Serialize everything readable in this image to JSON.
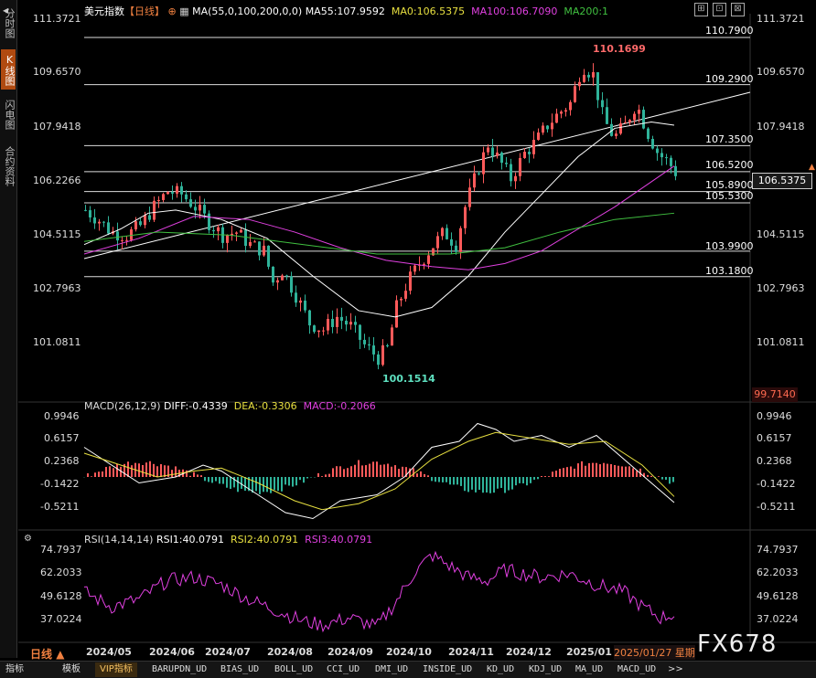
{
  "sidebar": {
    "tabs": [
      {
        "label": "分时图",
        "active": false
      },
      {
        "label": "K线图",
        "active": true
      },
      {
        "label": "闪电图",
        "active": false
      },
      {
        "label": "合约资料",
        "active": false
      }
    ]
  },
  "price_panel": {
    "instrument": "美元指数",
    "period": "【日线】",
    "ma_params": "MA(55,0,100,200,0,0)",
    "ma55": "MA55:107.9592",
    "ma0": "MA0:106.5375",
    "ma100": "MA100:106.7090",
    "ma200": "MA200:1",
    "y_ticks": [
      "111.3721",
      "109.6570",
      "107.9418",
      "106.2266",
      "104.5115",
      "102.7963",
      "101.0811"
    ],
    "levels": [
      "110.7900",
      "109.2900",
      "107.3500",
      "106.5200",
      "105.8900",
      "105.5300",
      "103.9900",
      "103.1800"
    ],
    "high_label": "110.1699",
    "low_label": "100.1514",
    "current_price": "106.5375",
    "low_tag": "99.7140"
  },
  "macd_panel": {
    "title": "MACD(26,12,9)",
    "diff": "DIFF:-0.4339",
    "dea": "DEA:-0.3306",
    "macd": "MACD:-0.2066",
    "y_ticks": [
      "0.9946",
      "0.6157",
      "0.2368",
      "-0.1422",
      "-0.5211"
    ]
  },
  "rsi_panel": {
    "title": "RSI(14,14,14)",
    "rsi1": "RSI1:40.0791",
    "rsi2": "RSI2:40.0791",
    "rsi3": "RSI3:40.0791",
    "y_ticks": [
      "74.7937",
      "62.2033",
      "49.6128",
      "37.0224"
    ]
  },
  "x_axis": {
    "period_label": "日线",
    "ticks": [
      "2024/05",
      "2024/06",
      "2024/07",
      "2024/08",
      "2024/09",
      "2024/10",
      "2024/11",
      "2024/12",
      "2025/01"
    ],
    "current_date": "2025/01/27 星期"
  },
  "watermark": "FX678",
  "bottom_tabs": [
    "指标",
    "模板",
    "VIP指标",
    "BARUPDN_UD",
    "BIAS_UD",
    "BOLL_UD",
    "CCI_UD",
    "DMI_UD",
    "INSIDE_UD",
    "KD_UD",
    "KDJ_UD",
    "MA_UD",
    "MACD_UD",
    ">>"
  ],
  "colors": {
    "up": "#ff5a5a",
    "down": "#2fb39a",
    "ma55": "#ffffff",
    "ma100": "#e040e0",
    "ma200": "#40c040",
    "dea": "#e8e040",
    "high_label": "#ff6a6a",
    "low_label": "#5ee0c0",
    "accent": "#f08040"
  },
  "icons": [
    "maximize-icon",
    "restore-icon",
    "close-icon",
    "settings-gear-icon",
    "sidebar-menu-icon"
  ]
}
